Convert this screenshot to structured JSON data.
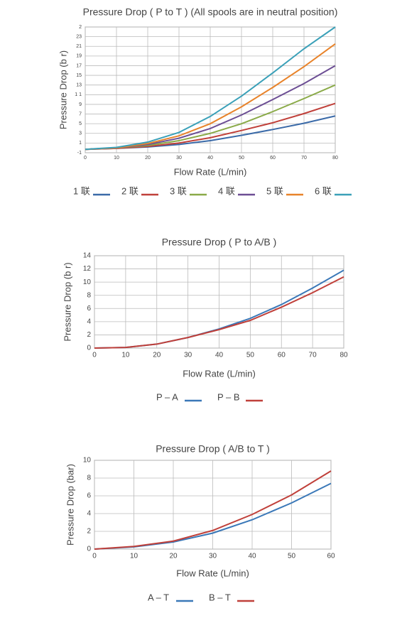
{
  "chart_data": [
    {
      "type": "line",
      "title": "Pressure Drop ( P to T ) (All spools are in neutral position)",
      "x_label": "Flow Rate (L/min)",
      "y_label": "Pressure Drop (b r)",
      "x": [
        0,
        10,
        20,
        30,
        40,
        50,
        60,
        70,
        80
      ],
      "xlim": [
        0,
        80
      ],
      "xticks": [
        0,
        10,
        20,
        30,
        40,
        50,
        60,
        70,
        80
      ],
      "ylim": [
        -1,
        25
      ],
      "yticks": [
        -1,
        1,
        3,
        5,
        7,
        9,
        {
          "value": 11,
          "label": "1 1"
        },
        13,
        15,
        17,
        19,
        21,
        23,
        {
          "value": 25,
          "label": "2"
        }
      ],
      "grid": true,
      "series": [
        {
          "name": "1 联",
          "color": "#3a6aa8",
          "values": [
            -0.3,
            -0.1,
            0.2,
            0.7,
            1.5,
            2.6,
            3.8,
            5.1,
            6.6
          ]
        },
        {
          "name": "2 联",
          "color": "#c0403a",
          "values": [
            -0.3,
            -0.1,
            0.3,
            1,
            2.1,
            3.6,
            5.2,
            7.1,
            9.2
          ]
        },
        {
          "name": "3 联",
          "color": "#8aaa48",
          "values": [
            -0.3,
            0,
            0.5,
            1.5,
            3,
            5,
            7.5,
            10.2,
            13
          ]
        },
        {
          "name": "4 联",
          "color": "#6c4e94",
          "values": [
            -0.3,
            0,
            0.7,
            2,
            4,
            6.8,
            10,
            13.3,
            17
          ]
        },
        {
          "name": "5 联",
          "color": "#e8832a",
          "values": [
            -0.3,
            0,
            0.9,
            2.5,
            5,
            8.5,
            12.5,
            16.8,
            21.5
          ]
        },
        {
          "name": "6 联",
          "color": "#3aa0b8",
          "values": [
            -0.3,
            0.1,
            1.2,
            3.2,
            6.5,
            10.7,
            15.5,
            20.5,
            25
          ]
        }
      ]
    },
    {
      "type": "line",
      "title": "Pressure Drop ( P to A/B )",
      "x_label": "Flow Rate (L/min)",
      "y_label": "Pressure Drop (b r)",
      "x": [
        0,
        10,
        20,
        30,
        40,
        50,
        60,
        70,
        80
      ],
      "xlim": [
        0,
        80
      ],
      "xticks": [
        0,
        10,
        20,
        30,
        40,
        50,
        60,
        70,
        80
      ],
      "ylim": [
        0,
        14
      ],
      "yticks": [
        0,
        2,
        4,
        6,
        8,
        10,
        12,
        14
      ],
      "grid": true,
      "series": [
        {
          "name": "P – A",
          "color": "#3a78b8",
          "values": [
            0,
            0.1,
            0.6,
            1.6,
            2.9,
            4.5,
            6.6,
            9.1,
            11.8
          ]
        },
        {
          "name": "P – B",
          "color": "#c0403a",
          "values": [
            0,
            0.1,
            0.6,
            1.6,
            2.8,
            4.2,
            6.2,
            8.4,
            10.8
          ]
        }
      ]
    },
    {
      "type": "line",
      "title": "Pressure Drop ( A/B to T )",
      "x_label": "Flow Rate (L/min)",
      "y_label": "Pressure Drop (bar)",
      "x": [
        0,
        10,
        20,
        30,
        40,
        50,
        60
      ],
      "xlim": [
        0,
        60
      ],
      "xticks": [
        0,
        10,
        20,
        30,
        40,
        50,
        60
      ],
      "ylim": [
        0,
        10
      ],
      "yticks": [
        0,
        2,
        4,
        6,
        8,
        10
      ],
      "grid": true,
      "series": [
        {
          "name": "A – T",
          "color": "#3a78b8",
          "values": [
            0,
            0.25,
            0.8,
            1.8,
            3.3,
            5.2,
            7.4
          ]
        },
        {
          "name": "B – T",
          "color": "#c0403a",
          "values": [
            0,
            0.3,
            0.9,
            2.1,
            3.9,
            6.1,
            8.8
          ]
        }
      ]
    }
  ]
}
